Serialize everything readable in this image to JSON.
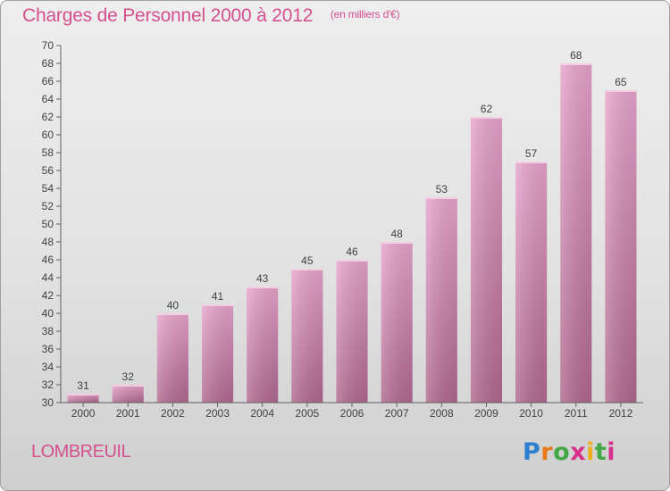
{
  "header": {
    "title": "Charges de Personnel 2000 à 2012",
    "subtitle": "(en milliers d'€)"
  },
  "commune": "LOMBREUIL",
  "brand": "Proxiti",
  "colors": {
    "title": "#d4508e",
    "bar_top": "#e7a4cc",
    "bar_bottom": "#b0688f",
    "axis": "#606060"
  },
  "chart_data": {
    "type": "bar",
    "categories": [
      "2000",
      "2001",
      "2002",
      "2003",
      "2004",
      "2005",
      "2006",
      "2007",
      "2008",
      "2009",
      "2010",
      "2011",
      "2012"
    ],
    "values": [
      31,
      32,
      40,
      41,
      43,
      45,
      46,
      48,
      53,
      62,
      57,
      68,
      65
    ],
    "title": "Charges de Personnel 2000 à 2012",
    "subtitle": "(en milliers d'€)",
    "xlabel": "",
    "ylabel": "",
    "ylim": [
      30,
      70
    ],
    "ytick_step": 2,
    "grid": false,
    "legend": "none"
  }
}
